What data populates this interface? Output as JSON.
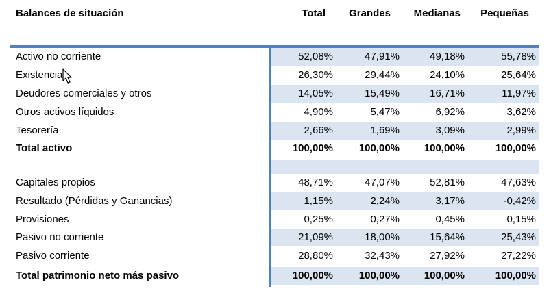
{
  "header": {
    "title": "Balances de situación",
    "columns": [
      "Total",
      "Grandes",
      "Medianas",
      "Pequeñas"
    ]
  },
  "rows": [
    {
      "label": "Activo no corriente",
      "values": [
        "52,08%",
        "47,91%",
        "49,18%",
        "55,78%"
      ]
    },
    {
      "label": "Existencias",
      "values": [
        "26,30%",
        "29,44%",
        "24,10%",
        "25,64%"
      ]
    },
    {
      "label": "Deudores comerciales y otros",
      "values": [
        "14,05%",
        "15,49%",
        "16,71%",
        "11,97%"
      ]
    },
    {
      "label": "Otros activos líquidos",
      "values": [
        "4,90%",
        "5,47%",
        "6,92%",
        "3,62%"
      ]
    },
    {
      "label": "Tesorería",
      "values": [
        "2,66%",
        "1,69%",
        "3,09%",
        "2,99%"
      ]
    },
    {
      "label": "Total activo",
      "values": [
        "100,00%",
        "100,00%",
        "100,00%",
        "100,00%"
      ]
    },
    {
      "label": "",
      "values": [
        "",
        "",
        "",
        ""
      ]
    },
    {
      "label": "Capitales propios",
      "values": [
        "48,71%",
        "47,07%",
        "52,81%",
        "47,63%"
      ]
    },
    {
      "label": "Resultado (Pérdidas y Ganancias)",
      "values": [
        "1,15%",
        "2,24%",
        "3,17%",
        "-0,42%"
      ]
    },
    {
      "label": "Provisiones",
      "values": [
        "0,25%",
        "0,27%",
        "0,45%",
        "0,15%"
      ]
    },
    {
      "label": "Pasivo no corriente",
      "values": [
        "21,09%",
        "18,00%",
        "15,64%",
        "25,43%"
      ]
    },
    {
      "label": "Pasivo corriente",
      "values": [
        "28,80%",
        "32,43%",
        "27,92%",
        "27,22%"
      ]
    },
    {
      "label": "Total patrimonio neto más pasivo",
      "values": [
        "100,00%",
        "100,00%",
        "100,00%",
        "100,00%"
      ]
    }
  ],
  "colors": {
    "accent": "#4f81bd",
    "band": "#dbe5f1"
  },
  "icons": {
    "cursor": "mouse-pointer-icon"
  }
}
